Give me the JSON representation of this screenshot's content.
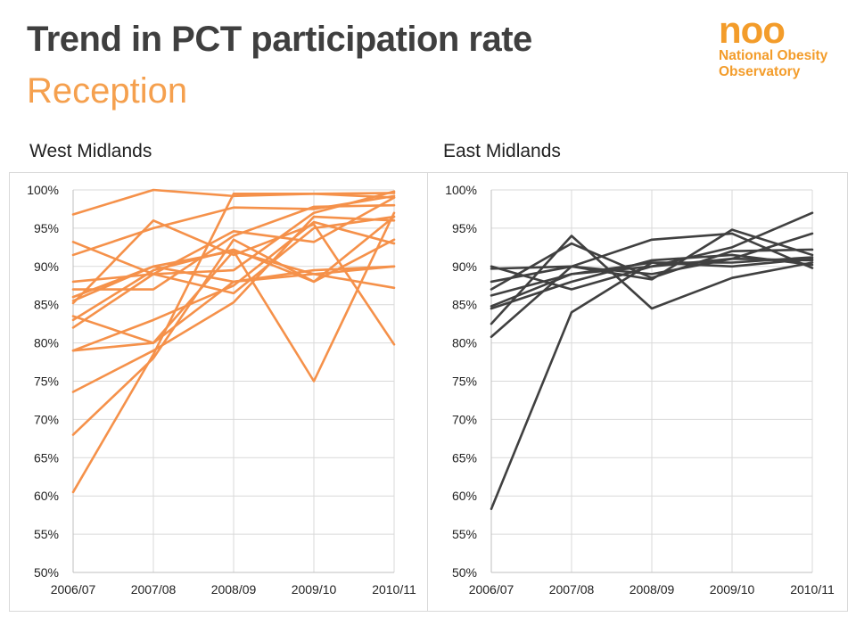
{
  "header": {
    "title": "Trend in PCT participation rate",
    "subtitle": "Reception"
  },
  "logo": {
    "mark": "noo",
    "line1": "National Obesity",
    "line2": "Observatory",
    "color": "#f39c2a"
  },
  "chart_data": [
    {
      "type": "line",
      "title": "West Midlands",
      "color": "#f5914a",
      "categories": [
        "2006/07",
        "2007/08",
        "2008/09",
        "2009/10",
        "2010/11"
      ],
      "yticks": [
        "50%",
        "55%",
        "60%",
        "65%",
        "70%",
        "75%",
        "80%",
        "85%",
        "90%",
        "95%",
        "100%"
      ],
      "ylim": [
        50,
        100
      ],
      "grid": true,
      "legend": "none",
      "series": [
        {
          "values": [
            96.8,
            100,
            99.2,
            99.5,
            99.6
          ]
        },
        {
          "values": [
            91.5,
            95.0,
            97.7,
            97.5,
            99.2
          ]
        },
        {
          "values": [
            93.2,
            89.0,
            94.6,
            93.2,
            99.0
          ]
        },
        {
          "values": [
            88.0,
            89.0,
            89.5,
            97.0,
            99.8
          ]
        },
        {
          "values": [
            87.0,
            87.0,
            94.0,
            97.8,
            98.0
          ]
        },
        {
          "values": [
            85.5,
            90.0,
            92.0,
            89.0,
            87.2
          ]
        },
        {
          "values": [
            85.2,
            96.0,
            91.5,
            95.5,
            79.8
          ]
        },
        {
          "values": [
            83.0,
            89.5,
            92.2,
            88.0,
            96.5
          ]
        },
        {
          "values": [
            83.5,
            80.0,
            92.0,
            75.0,
            97.0
          ]
        },
        {
          "values": [
            82.0,
            89.0,
            86.5,
            95.0,
            96.5
          ]
        },
        {
          "values": [
            79.0,
            83.0,
            87.5,
            95.8,
            93.0
          ]
        },
        {
          "values": [
            79.0,
            80.0,
            88.0,
            89.0,
            90.0
          ]
        },
        {
          "values": [
            86.0,
            90.0,
            88.0,
            89.5,
            90.0
          ]
        },
        {
          "values": [
            73.6,
            79.0,
            85.3,
            96.5,
            96.0
          ]
        },
        {
          "values": [
            68.0,
            78.0,
            93.5,
            88.0,
            93.5
          ]
        },
        {
          "values": [
            60.5,
            78.5,
            99.5,
            99.5,
            99.0
          ]
        }
      ]
    },
    {
      "type": "line",
      "title": "East Midlands",
      "color": "#404040",
      "categories": [
        "2006/07",
        "2007/08",
        "2008/09",
        "2009/10",
        "2010/11"
      ],
      "yticks": [
        "50%",
        "55%",
        "60%",
        "65%",
        "70%",
        "75%",
        "80%",
        "85%",
        "90%",
        "95%",
        "100%"
      ],
      "ylim": [
        50,
        100
      ],
      "grid": true,
      "legend": "none",
      "series": [
        {
          "values": [
            90.0,
            87.0,
            90.0,
            92.5,
            97.0
          ]
        },
        {
          "values": [
            89.7,
            90.0,
            88.3,
            94.8,
            91.5
          ]
        },
        {
          "values": [
            88.0,
            90.0,
            89.0,
            91.0,
            94.3
          ]
        },
        {
          "values": [
            87.0,
            93.0,
            88.5,
            92.0,
            92.2
          ]
        },
        {
          "values": [
            86.2,
            89.0,
            90.0,
            91.0,
            90.8
          ]
        },
        {
          "values": [
            84.8,
            89.0,
            90.5,
            90.0,
            91.0
          ]
        },
        {
          "values": [
            84.5,
            88.0,
            90.8,
            91.5,
            90.2
          ]
        },
        {
          "values": [
            82.5,
            94.0,
            84.5,
            88.5,
            90.5
          ]
        },
        {
          "values": [
            80.8,
            90.0,
            93.5,
            94.3,
            89.8
          ]
        },
        {
          "values": [
            58.3,
            84.0,
            90.5,
            90.5,
            91.2
          ]
        }
      ]
    }
  ]
}
